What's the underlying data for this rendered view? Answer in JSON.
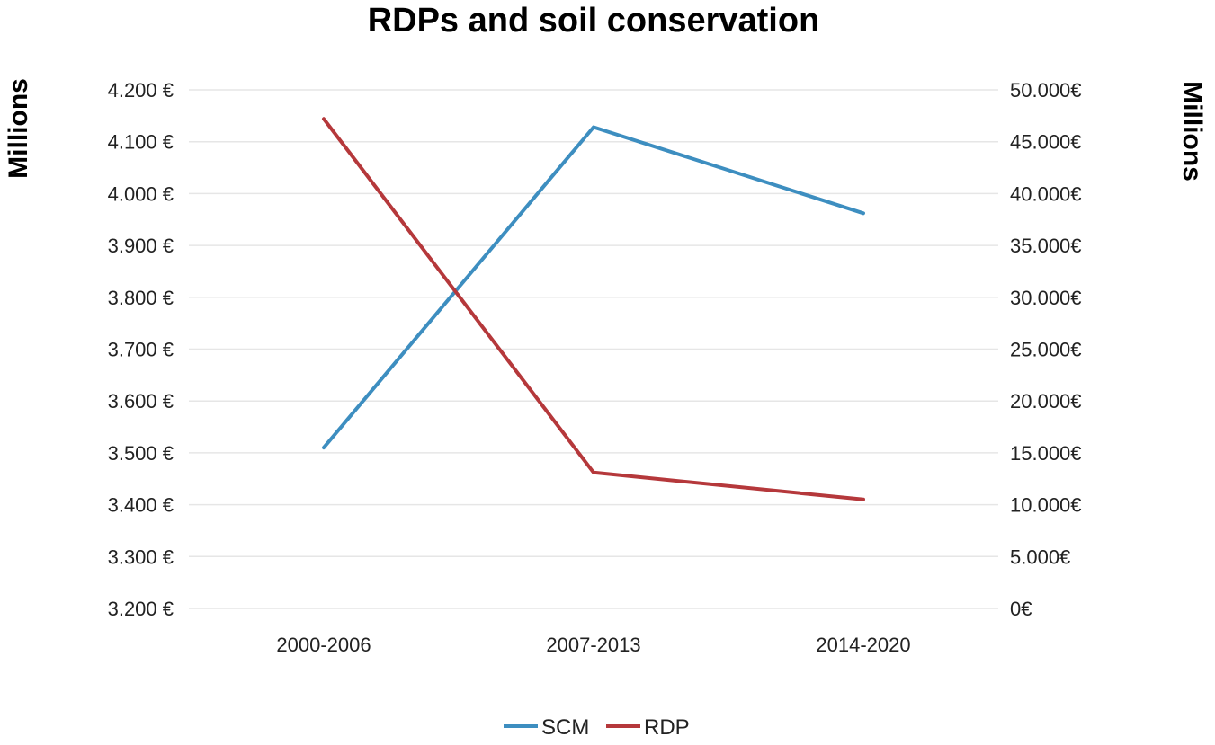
{
  "chart_data": {
    "type": "line",
    "title": "RDPs and soil conservation",
    "categories": [
      "2000-2006",
      "2007-2013",
      "2014-2020"
    ],
    "y_left": {
      "label": "Millions",
      "ylim": [
        3200,
        4200
      ],
      "ticks": [
        3200,
        3300,
        3400,
        3500,
        3600,
        3700,
        3800,
        3900,
        4000,
        4100,
        4200
      ],
      "tick_labels": [
        "3.200 €",
        "3.300 €",
        "3.400 €",
        "3.500 €",
        "3.600 €",
        "3.700 €",
        "3.800 €",
        "3.900 €",
        "4.000 €",
        "4.100 €",
        "4.200 €"
      ]
    },
    "y_right": {
      "label": "Millions",
      "ylim": [
        0,
        50000
      ],
      "ticks": [
        0,
        5000,
        10000,
        15000,
        20000,
        25000,
        30000,
        35000,
        40000,
        45000,
        50000
      ],
      "tick_labels": [
        "0€",
        "5.000€",
        "10.000€",
        "15.000€",
        "20.000€",
        "25.000€",
        "30.000€",
        "35.000€",
        "40.000€",
        "45.000€",
        "50.000€"
      ]
    },
    "series": [
      {
        "name": "SCM",
        "axis": "left",
        "color": "#3d8ec0",
        "values": [
          3510,
          4128,
          3962
        ]
      },
      {
        "name": "RDP",
        "axis": "right",
        "color": "#b5383b",
        "values": [
          47200,
          13100,
          10500
        ]
      }
    ],
    "grid": true,
    "legend_position": "bottom"
  }
}
